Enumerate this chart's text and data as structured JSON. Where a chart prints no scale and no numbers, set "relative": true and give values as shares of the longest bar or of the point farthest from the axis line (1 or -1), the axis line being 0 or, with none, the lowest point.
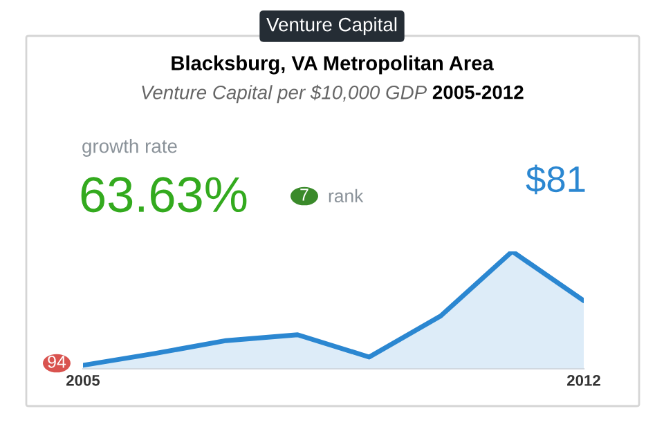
{
  "chart_data": {
    "type": "area",
    "relative": true,
    "title": "Blacksburg, VA Metropolitan Area",
    "subtitle": "Venture Capital per $10,000 GDP 2005-2012",
    "categories": [
      "2005",
      null,
      null,
      null,
      null,
      null,
      null,
      "2012"
    ],
    "series": [
      {
        "color": "#2b87d1",
        "values": [
          0.03,
          0.13,
          0.24,
          0.29,
          0.1,
          0.45,
          1,
          0.58
        ]
      }
    ],
    "annotations": [
      "Venture Capital",
      "growth rate",
      "63.63%",
      "7",
      "rank",
      "$81",
      "94"
    ],
    "grid": false,
    "legend": false
  }
}
